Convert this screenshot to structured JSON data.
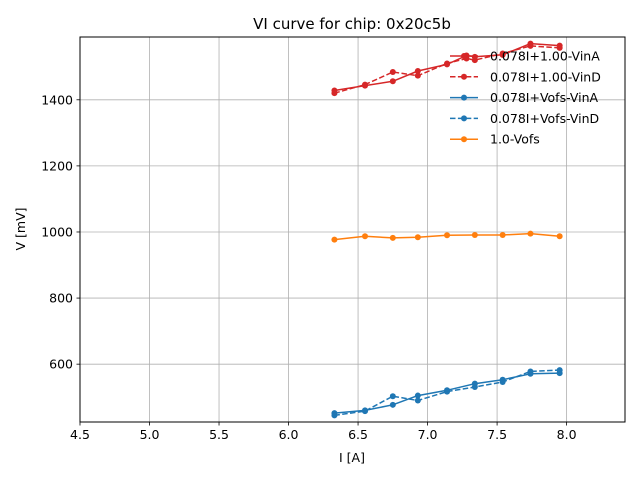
{
  "chart_data": {
    "type": "line",
    "title": "VI curve for chip: 0x20c5b",
    "xlabel": "I [A]",
    "ylabel": "V [mV]",
    "xlim": [
      4.5,
      8.42
    ],
    "ylim": [
      425,
      1590
    ],
    "xticks": [
      4.5,
      5.0,
      5.5,
      6.0,
      6.5,
      7.0,
      7.5,
      8.0
    ],
    "xtick_labels": [
      "4.5",
      "5.0",
      "5.5",
      "6.0",
      "6.5",
      "7.0",
      "7.5",
      "8.0"
    ],
    "yticks": [
      600,
      800,
      1000,
      1200,
      1400
    ],
    "ytick_labels": [
      "600",
      "800",
      "1000",
      "1200",
      "1400"
    ],
    "grid": true,
    "legend_position": "top-right",
    "series": [
      {
        "name": "0.078I+1.00-VinA",
        "color": "#d62728",
        "linestyle": "solid",
        "x": [
          6.33,
          6.55,
          6.75,
          6.93,
          7.14,
          7.28,
          7.34,
          7.54,
          7.74,
          7.95
        ],
        "y": [
          1428,
          1443,
          1456,
          1487,
          1507,
          1534,
          1530,
          1536,
          1570,
          1564
        ]
      },
      {
        "name": "0.078I+1.00-VinD",
        "color": "#d62728",
        "linestyle": "dashed",
        "x": [
          6.33,
          6.55,
          6.75,
          6.93,
          7.14,
          7.28,
          7.34,
          7.54,
          7.74,
          7.95
        ],
        "y": [
          1420,
          1446,
          1484,
          1473,
          1510,
          1525,
          1520,
          1540,
          1563,
          1557
        ]
      },
      {
        "name": "0.078I+Vofs-VinA",
        "color": "#1f77b4",
        "linestyle": "solid",
        "x": [
          6.33,
          6.55,
          6.75,
          6.93,
          7.14,
          7.34,
          7.54,
          7.74,
          7.95
        ],
        "y": [
          452,
          460,
          477,
          505,
          521,
          541,
          553,
          571,
          573
        ]
      },
      {
        "name": "0.078I+Vofs-VinD",
        "color": "#1f77b4",
        "linestyle": "dashed",
        "x": [
          6.33,
          6.55,
          6.75,
          6.93,
          7.14,
          7.34,
          7.54,
          7.74,
          7.95
        ],
        "y": [
          445,
          458,
          503,
          490,
          517,
          531,
          546,
          578,
          582
        ]
      },
      {
        "name": "1.0-Vofs",
        "color": "#ff7f0e",
        "linestyle": "solid",
        "x": [
          6.33,
          6.55,
          6.75,
          6.93,
          7.14,
          7.34,
          7.54,
          7.74,
          7.95
        ],
        "y": [
          977,
          987,
          982,
          984,
          990,
          991,
          991,
          995,
          987
        ]
      }
    ]
  }
}
